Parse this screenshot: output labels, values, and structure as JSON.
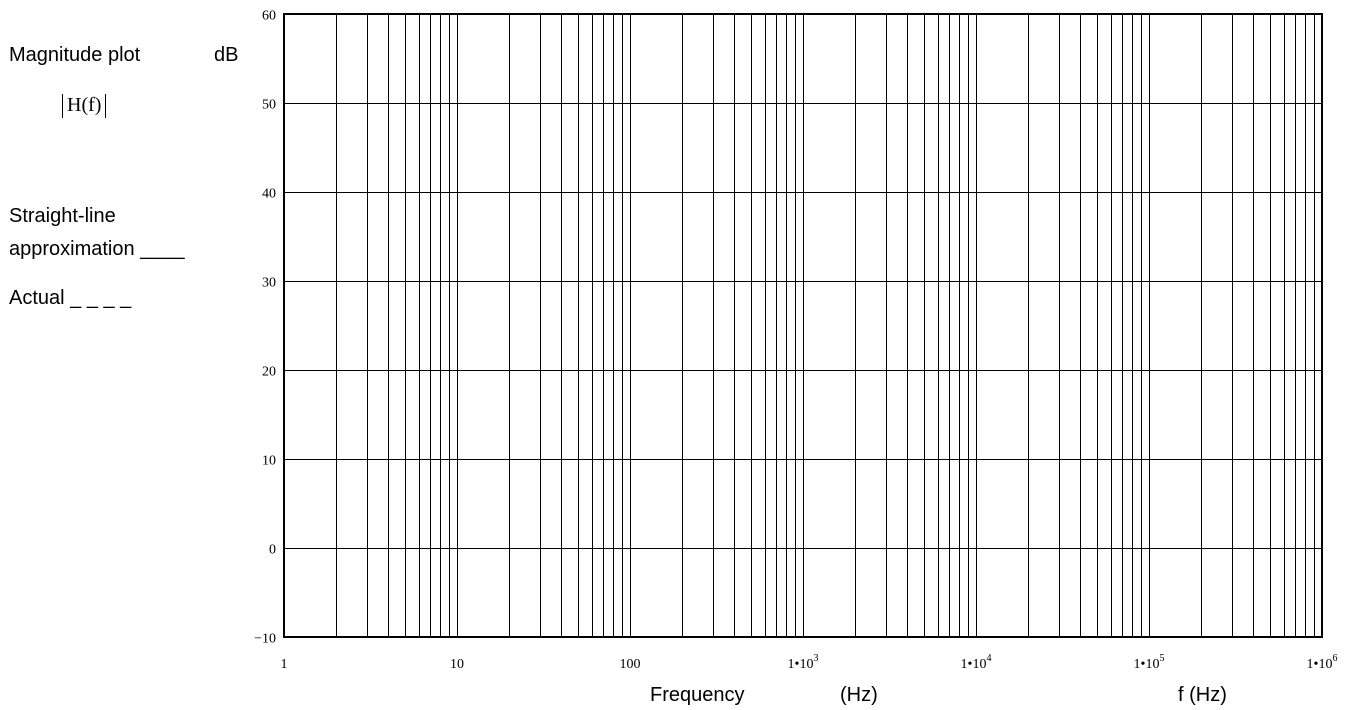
{
  "legend": {
    "magnitude_plot": "Magnitude plot",
    "db_unit": "dB",
    "hf_label": "H(f)",
    "straight_line": "Straight-line",
    "approximation": "approximation ____",
    "actual": "Actual _ _ _ _"
  },
  "chart_data": {
    "type": "line",
    "xscale": "log",
    "xlim": [
      1,
      1000000
    ],
    "ylim": [
      -10,
      60
    ],
    "grid": true,
    "xlabel": "Frequency",
    "xlabel_unit": "(Hz)",
    "xlabel_right": "f (Hz)",
    "ylabel": "dB",
    "yticks": [
      60,
      50,
      40,
      30,
      20,
      10,
      0,
      -10
    ],
    "ytick_labels": [
      "60",
      "50",
      "40",
      "30",
      "20",
      "10",
      "0",
      "−10"
    ],
    "xticks": [
      {
        "value": 1,
        "base": "1",
        "exp": ""
      },
      {
        "value": 10,
        "base": "10",
        "exp": ""
      },
      {
        "value": 100,
        "base": "100",
        "exp": ""
      },
      {
        "value": 1000,
        "base": "1•10",
        "exp": "3"
      },
      {
        "value": 10000,
        "base": "1•10",
        "exp": "4"
      },
      {
        "value": 100000,
        "base": "1•10",
        "exp": "5"
      },
      {
        "value": 1000000,
        "base": "1•10",
        "exp": "6"
      }
    ],
    "series": []
  }
}
